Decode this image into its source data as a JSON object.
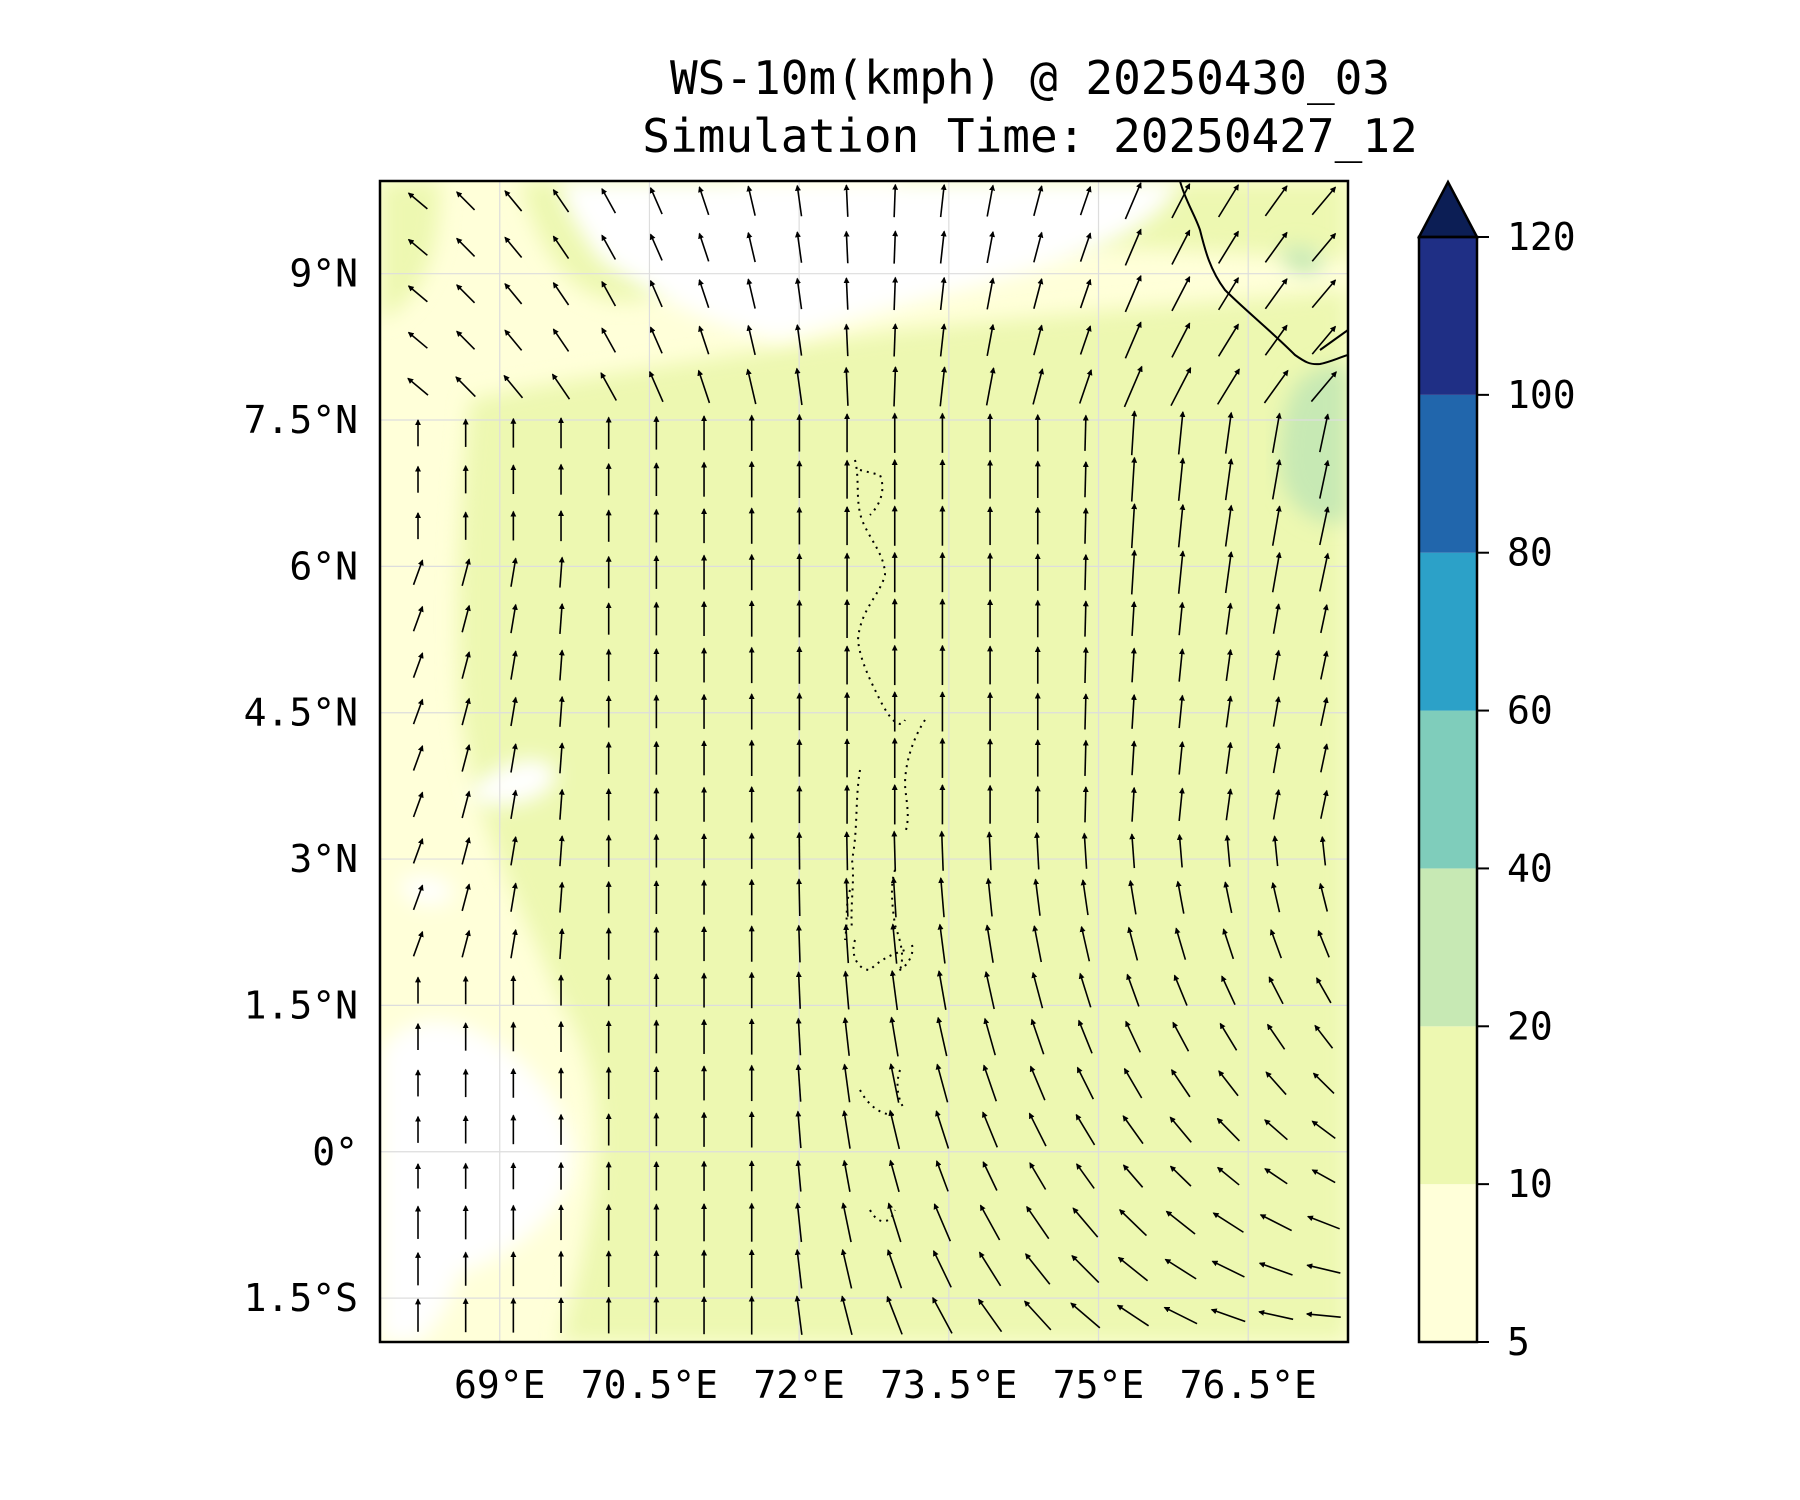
{
  "title": {
    "line1": "WS-10m(kmph) @ 20250430_03",
    "line2": "Simulation Time: 20250427_12"
  },
  "map": {
    "lon_range": [
      67.8,
      77.5
    ],
    "lat_range": [
      -1.95,
      9.95
    ],
    "x_ticks": [
      {
        "value": 69,
        "label": "69°E"
      },
      {
        "value": 70.5,
        "label": "70.5°E"
      },
      {
        "value": 72,
        "label": "72°E"
      },
      {
        "value": 73.5,
        "label": "73.5°E"
      },
      {
        "value": 75,
        "label": "75°E"
      },
      {
        "value": 76.5,
        "label": "76.5°E"
      }
    ],
    "y_ticks": [
      {
        "value": 9,
        "label": "9°N"
      },
      {
        "value": 7.5,
        "label": "7.5°N"
      },
      {
        "value": 6,
        "label": "6°N"
      },
      {
        "value": 4.5,
        "label": "4.5°N"
      },
      {
        "value": 3,
        "label": "3°N"
      },
      {
        "value": 1.5,
        "label": "1.5°N"
      },
      {
        "value": 0,
        "label": "0°"
      },
      {
        "value": -1.5,
        "label": "1.5°S"
      }
    ],
    "grid": true,
    "field": "10 m wind speed (filled contours) with wind direction arrows"
  },
  "colorbar": {
    "extend": "max",
    "levels": [
      {
        "label": "5",
        "color": "#ffffd9"
      },
      {
        "label": "10",
        "color": "#edf8b1"
      },
      {
        "label": "20",
        "color": "#c7e9b4"
      },
      {
        "label": "40",
        "color": "#7fcdbb"
      },
      {
        "label": "60",
        "color": "#2ca1c8"
      },
      {
        "label": "80",
        "color": "#2166ac"
      },
      {
        "label": "100",
        "color": "#1f2f85"
      },
      {
        "label": "120",
        "color": "#0c1e55"
      }
    ]
  },
  "colors": {
    "land_line": "#000000",
    "grid": "#dddddd",
    "arrow": "#000000"
  }
}
